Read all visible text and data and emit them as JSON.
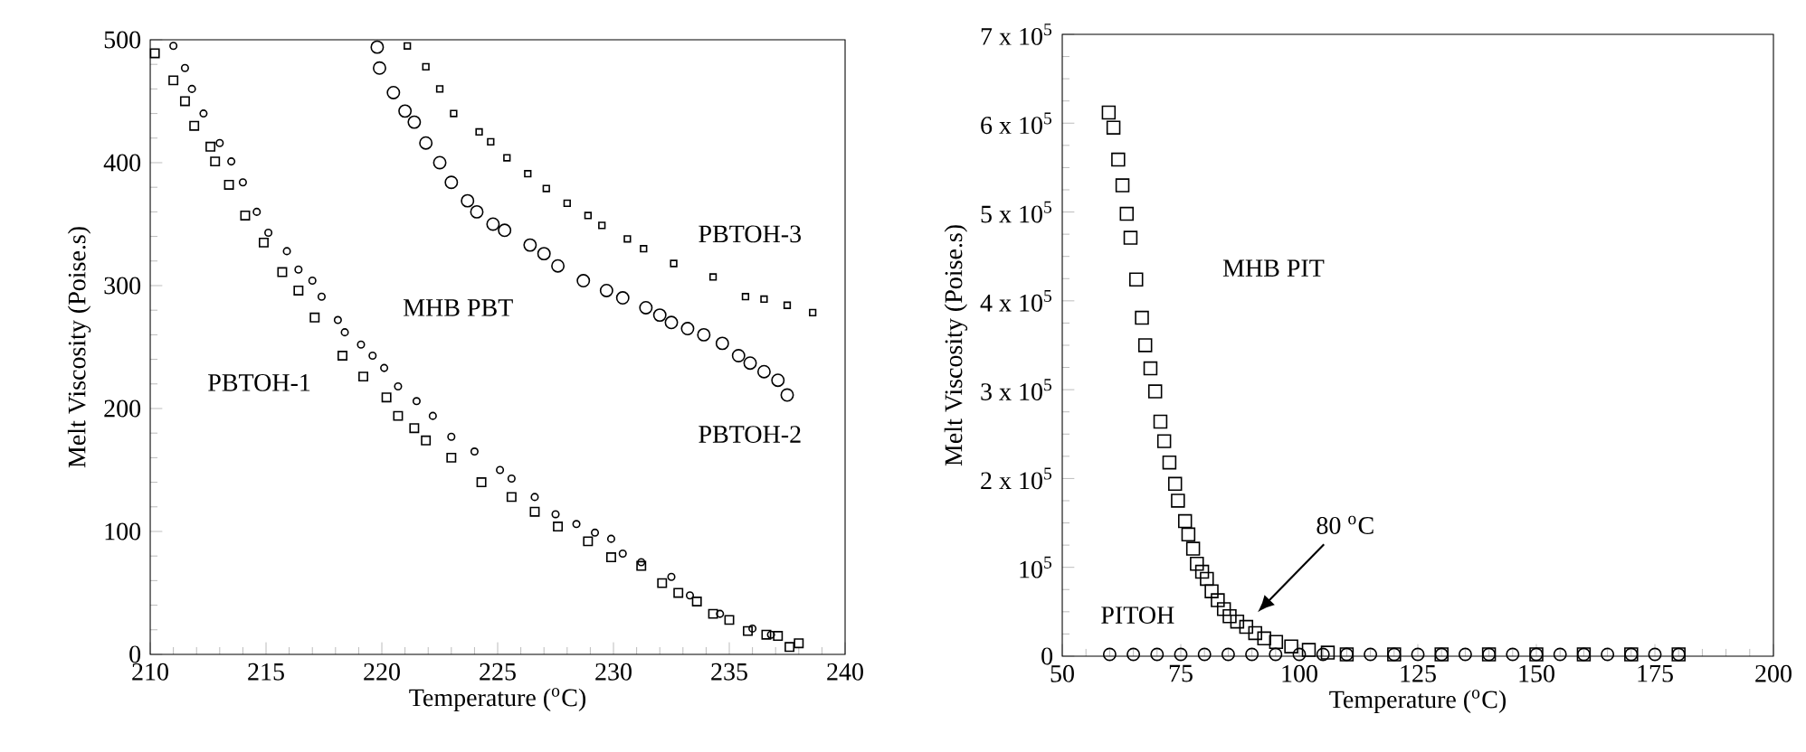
{
  "chart_data": [
    {
      "type": "scatter",
      "xlabel": "Temperature ($^{o}$C)",
      "ylabel": "Melt Viscosity (Poise.s)",
      "xlim": [
        210,
        240
      ],
      "ylim": [
        0,
        500
      ],
      "xticks": [
        210,
        215,
        220,
        225,
        230,
        235,
        240
      ],
      "yticks": [
        0,
        100,
        200,
        300,
        400,
        500
      ],
      "series": [
        {
          "color": "#000000",
          "marker": "square",
          "x": [
            210.2,
            211.0,
            211.5,
            211.9,
            212.6,
            212.8,
            213.4,
            214.1,
            214.9,
            215.7,
            216.4,
            217.1,
            218.3,
            219.2,
            220.2,
            220.7,
            221.4,
            221.9,
            223.0,
            224.3,
            225.6,
            226.6,
            227.6,
            228.9,
            229.9,
            231.2,
            232.1,
            232.8,
            233.6,
            234.3,
            235.0,
            235.8,
            236.6,
            237.1,
            237.6,
            238.0
          ],
          "values": [
            489,
            467,
            450,
            430,
            413,
            401,
            382,
            357,
            335,
            311,
            296,
            274,
            243,
            226,
            209,
            194,
            184,
            174,
            160,
            140,
            128,
            116,
            104,
            92,
            79,
            72,
            58,
            50,
            43,
            33,
            28,
            19,
            16,
            15,
            6,
            9
          ]
        },
        {
          "color": "#000000",
          "marker": "circle",
          "x": [
            211.0,
            211.5,
            211.8,
            212.3,
            213.0,
            213.5,
            214.0,
            214.6,
            215.1,
            215.9,
            216.4,
            217.0,
            217.4,
            218.1,
            218.4,
            219.1,
            219.6,
            220.1,
            220.7,
            221.5,
            222.2,
            223.0,
            224.0,
            225.1,
            225.6,
            226.6,
            227.5,
            228.4,
            229.2,
            229.9,
            230.4,
            231.2,
            232.5,
            233.3,
            234.6,
            236.0,
            236.8
          ],
          "values": [
            495,
            477,
            460,
            440,
            416,
            401,
            384,
            360,
            343,
            328,
            313,
            304,
            291,
            272,
            262,
            252,
            243,
            233,
            218,
            206,
            194,
            177,
            165,
            150,
            143,
            128,
            114,
            106,
            99,
            94,
            82,
            75,
            63,
            48,
            33,
            21,
            16
          ]
        },
        {
          "color": "#000000",
          "marker": "circle",
          "x": [
            219.8,
            219.9,
            220.5,
            221.0,
            221.4,
            221.9,
            222.5,
            223.0,
            223.7,
            224.1,
            224.8,
            225.3,
            226.4,
            227.0,
            227.6,
            228.7,
            229.7,
            230.4,
            231.4,
            232.0,
            232.5,
            233.2,
            233.9,
            234.7,
            235.4,
            235.9,
            236.5,
            237.1,
            237.5
          ],
          "values": [
            494,
            477,
            457,
            442,
            433,
            416,
            400,
            384,
            369,
            360,
            350,
            345,
            333,
            326,
            316,
            304,
            296,
            290,
            282,
            276,
            270,
            265,
            260,
            253,
            243,
            237,
            230,
            223,
            211
          ]
        },
        {
          "color": "#000000",
          "marker": "square",
          "x": [
            221.1,
            221.9,
            222.5,
            223.1,
            224.2,
            224.7,
            225.4,
            226.3,
            227.1,
            228.0,
            228.9,
            229.5,
            230.6,
            231.3,
            232.6,
            234.3,
            235.7,
            236.5,
            237.5,
            238.6
          ],
          "values": [
            495,
            478,
            460,
            440,
            425,
            417,
            404,
            391,
            379,
            367,
            357,
            349,
            338,
            330,
            318,
            307,
            291,
            289,
            284,
            278
          ]
        }
      ],
      "annotations": [
        "PBTOH-3",
        "PBTOH-2",
        "MHB PBT",
        "PBTOH-1"
      ]
    },
    {
      "type": "scatter",
      "xlabel": "Temperature ($^{o}$C)",
      "ylabel": "Melt Viscosity (Poise.s)",
      "xlim": [
        50,
        200
      ],
      "ylim": [
        0,
        700000
      ],
      "xticks": [
        50,
        75,
        100,
        125,
        150,
        175,
        200
      ],
      "yticks": [
        0,
        {
          "value": 100000,
          "label": "10$^{5}$"
        },
        {
          "value": 200000,
          "label": "2 x 10$^{5}$"
        },
        {
          "value": 300000,
          "label": "3 x 10$^{5}$"
        },
        {
          "value": 400000,
          "label": "4 x 10$^{5}$"
        },
        {
          "value": 500000,
          "label": "5 x 10$^{5}$"
        },
        {
          "value": 600000,
          "label": "6 x 10$^{5}$"
        },
        {
          "value": 700000,
          "label": "7 x 10$^{5}$"
        }
      ],
      "series": [
        {
          "color": "#000000",
          "marker": "square",
          "x": [
            59.8,
            60.8,
            61.8,
            62.7,
            63.6,
            64.4,
            65.6,
            66.8,
            67.5,
            68.6,
            69.6,
            70.7,
            71.5,
            72.6,
            73.8,
            74.4,
            75.9,
            76.6,
            77.6,
            78.4,
            79.5,
            80.5,
            81.5,
            82.8,
            84.1,
            85.3,
            86.9,
            88.8,
            90.7,
            92.6,
            95.1,
            98.3,
            102,
            106,
            110,
            120,
            130,
            140,
            150,
            160,
            170,
            180
          ],
          "values": [
            612000,
            595000,
            559000,
            530000,
            498000,
            471000,
            424000,
            381000,
            350000,
            324000,
            298000,
            264000,
            242000,
            218000,
            194000,
            175000,
            152000,
            137000,
            121000,
            104000,
            95000,
            87000,
            73000,
            63000,
            53000,
            45000,
            39000,
            33000,
            26000,
            20000,
            16000,
            11000,
            7000,
            4000,
            2000,
            2000,
            2000,
            2000,
            2000,
            2000,
            2000,
            2000
          ]
        },
        {
          "color": "#000000",
          "marker": "circle",
          "x": [
            60,
            65,
            70,
            75,
            80,
            85,
            90,
            95,
            100,
            105,
            110,
            115,
            120,
            125,
            130,
            135,
            140,
            145,
            150,
            155,
            160,
            165,
            170,
            175,
            180
          ],
          "values": [
            2000,
            2000,
            2000,
            2000,
            2000,
            2000,
            2000,
            2000,
            2000,
            2000,
            2000,
            2000,
            2000,
            2000,
            2000,
            2000,
            2000,
            2000,
            2000,
            2000,
            2000,
            2000,
            2000,
            2000,
            2000
          ]
        }
      ],
      "annotations": [
        "MHB PIT",
        "PITOH",
        "80 $^{o}$C"
      ]
    }
  ]
}
